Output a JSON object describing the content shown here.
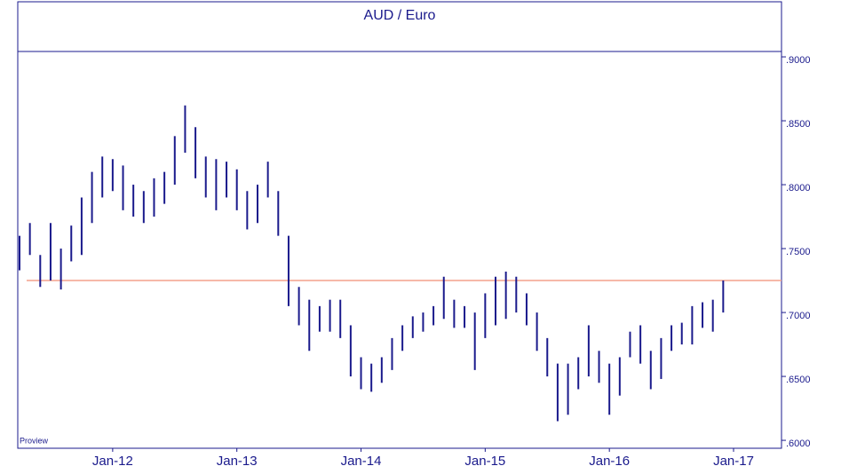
{
  "chart_data": {
    "type": "range-bar",
    "title": "AUD / Euro",
    "note": "Proview",
    "categories": [
      null,
      null,
      null,
      null,
      null,
      null,
      null,
      null,
      null,
      "Jan-12",
      null,
      null,
      null,
      null,
      null,
      null,
      null,
      null,
      null,
      null,
      null,
      "Jan-13",
      null,
      null,
      null,
      null,
      null,
      null,
      null,
      null,
      null,
      null,
      null,
      "Jan-14",
      null,
      null,
      null,
      null,
      null,
      null,
      null,
      null,
      null,
      null,
      null,
      "Jan-15",
      null,
      null,
      null,
      null,
      null,
      null,
      null,
      null,
      null,
      null,
      null,
      "Jan-16",
      null,
      null,
      null,
      null,
      null,
      null,
      null,
      null,
      null,
      null,
      null,
      "Jan-17"
    ],
    "high": [
      0.76,
      0.77,
      0.745,
      0.77,
      0.75,
      0.768,
      0.79,
      0.81,
      0.822,
      0.82,
      0.815,
      0.8,
      0.795,
      0.805,
      0.81,
      0.838,
      0.862,
      0.845,
      0.822,
      0.82,
      0.818,
      0.812,
      0.795,
      0.8,
      0.818,
      0.795,
      0.76,
      0.72,
      0.71,
      0.705,
      0.71,
      0.71,
      0.69,
      0.665,
      0.66,
      0.665,
      0.68,
      0.69,
      0.697,
      0.7,
      0.705,
      0.728,
      0.71,
      0.705,
      0.7,
      0.715,
      0.728,
      0.732,
      0.728,
      0.715,
      0.7,
      0.68,
      0.66,
      0.66,
      0.665,
      0.69,
      0.67,
      0.66,
      0.665,
      0.685,
      0.69,
      0.67,
      0.68,
      0.69,
      0.692,
      0.705,
      0.708,
      0.71,
      0.725,
      null
    ],
    "low": [
      0.733,
      0.745,
      0.72,
      0.725,
      0.718,
      0.74,
      0.745,
      0.77,
      0.79,
      0.795,
      0.78,
      0.775,
      0.77,
      0.775,
      0.785,
      0.8,
      0.825,
      0.805,
      0.79,
      0.78,
      0.79,
      0.78,
      0.765,
      0.77,
      0.79,
      0.76,
      0.705,
      0.69,
      0.67,
      0.685,
      0.685,
      0.68,
      0.65,
      0.64,
      0.638,
      0.645,
      0.655,
      0.67,
      0.68,
      0.685,
      0.69,
      0.695,
      0.688,
      0.688,
      0.655,
      0.68,
      0.69,
      0.695,
      0.7,
      0.69,
      0.67,
      0.65,
      0.615,
      0.62,
      0.64,
      0.65,
      0.645,
      0.62,
      0.635,
      0.665,
      0.66,
      0.64,
      0.648,
      0.67,
      0.675,
      0.675,
      0.688,
      0.685,
      0.7,
      null
    ],
    "color": "#1a1a8c",
    "reference_line": 0.725,
    "reference_color": "#f4a08c",
    "ylim": [
      0.5938,
      0.9042
    ],
    "yticks": [
      {
        "value": 0.6,
        "label": ".6000"
      },
      {
        "value": 0.65,
        "label": ".6500"
      },
      {
        "value": 0.7,
        "label": ".7000"
      },
      {
        "value": 0.75,
        "label": ".7500"
      },
      {
        "value": 0.8,
        "label": ".8000"
      },
      {
        "value": 0.85,
        "label": ".8500"
      },
      {
        "value": 0.9,
        "label": ".9000"
      }
    ]
  }
}
